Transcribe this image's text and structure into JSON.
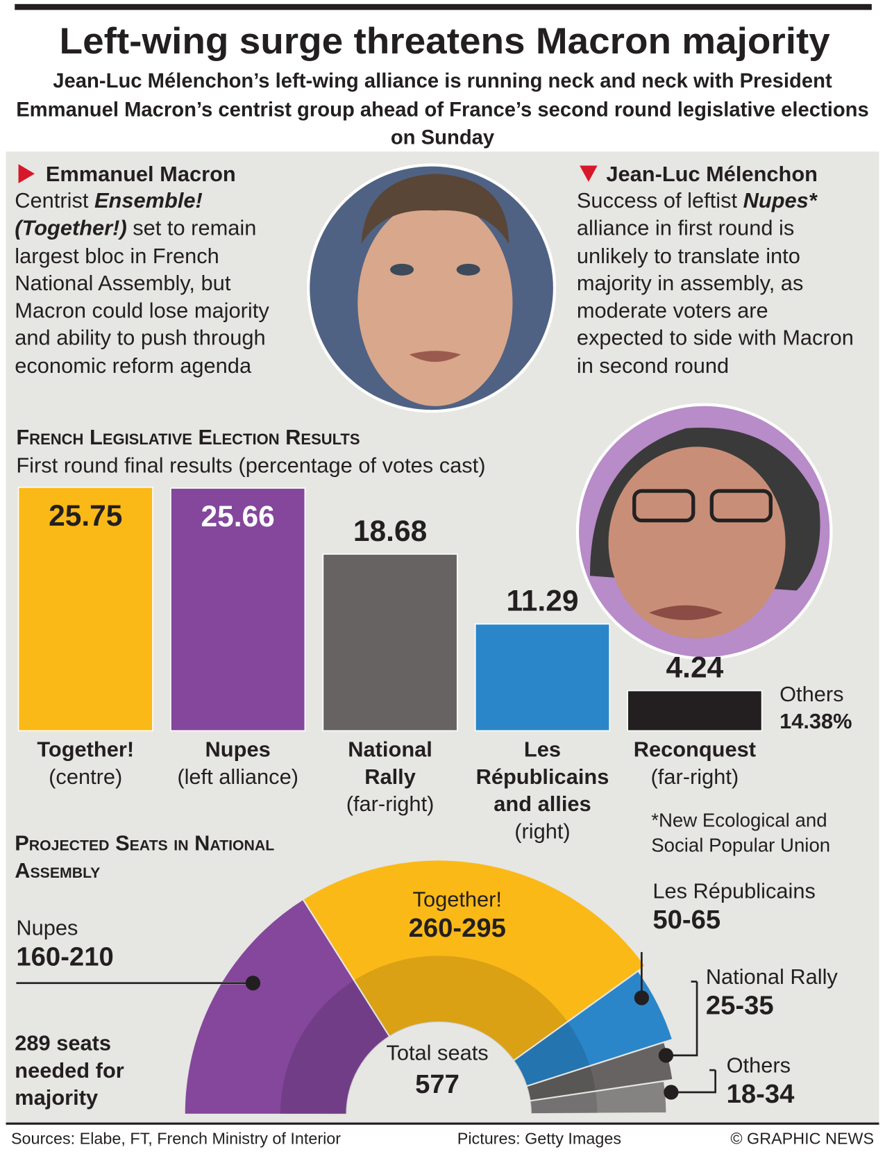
{
  "header": {
    "title": "Left-wing surge threatens Macron majority",
    "subtitle": "Jean-Luc Mélenchon’s left-wing alliance is running neck and neck with President Emmanuel Macron’s centrist group ahead of France’s second round legislative elections on Sunday"
  },
  "profiles": [
    {
      "name": "Emmanuel Macron",
      "text": [
        "Centrist ",
        "Ensemble! (Together!)",
        " set to remain largest bloc in French National Assembly, but Macron could lose majority and ability to push through economic reform agenda"
      ]
    },
    {
      "name": "Jean-Luc Mélenchon",
      "text": [
        "Success of leftist ",
        "Nupes*",
        " alliance in first round is unlikely to translate into majority in assembly, as moderate voters are expected to side with Macron in second round"
      ]
    }
  ],
  "chart_data": [
    {
      "type": "bar",
      "title": "French Legislative Election Results",
      "subtitle": "First round final results (percentage of votes cast)",
      "categories": [
        "Together!",
        "Nupes",
        "National Rally",
        "Les Républicains and allies",
        "Reconquest"
      ],
      "category_notes": [
        "(centre)",
        "(left alliance)",
        "(far-right)",
        "(right)",
        "(far-right)"
      ],
      "values": [
        25.75,
        25.66,
        18.68,
        11.29,
        4.24
      ],
      "colors": [
        "#fbb917",
        "#84479c",
        "#676363",
        "#2a86c9",
        "#231f20"
      ],
      "others": {
        "label": "Others",
        "value": 14.38,
        "value_label": "14.38%"
      },
      "footnote": "*New Ecological and Social Popular Union"
    },
    {
      "type": "semicircle",
      "title": "Projected Seats in National Assembly",
      "total_label": "Total seats",
      "total": 577,
      "majority_note": "289 seats needed for majority",
      "segments": [
        {
          "name": "Nupes",
          "low": 160,
          "high": 210,
          "label": "160-210",
          "color": "#84479c"
        },
        {
          "name": "Together!",
          "low": 260,
          "high": 295,
          "label": "260-295",
          "color": "#fbb917"
        },
        {
          "name": "Les Républicains",
          "low": 50,
          "high": 65,
          "label": "50-65",
          "color": "#2a86c9"
        },
        {
          "name": "National Rally",
          "low": 25,
          "high": 35,
          "label": "25-35",
          "color": "#676363"
        },
        {
          "name": "Others",
          "low": 18,
          "high": 34,
          "label": "18-34",
          "color": "#858282"
        }
      ]
    }
  ],
  "footer": {
    "sources": "Sources: Elabe, FT, French Ministry of Interior",
    "pictures": "Pictures: Getty Images",
    "credit": "© GRAPHIC NEWS"
  }
}
